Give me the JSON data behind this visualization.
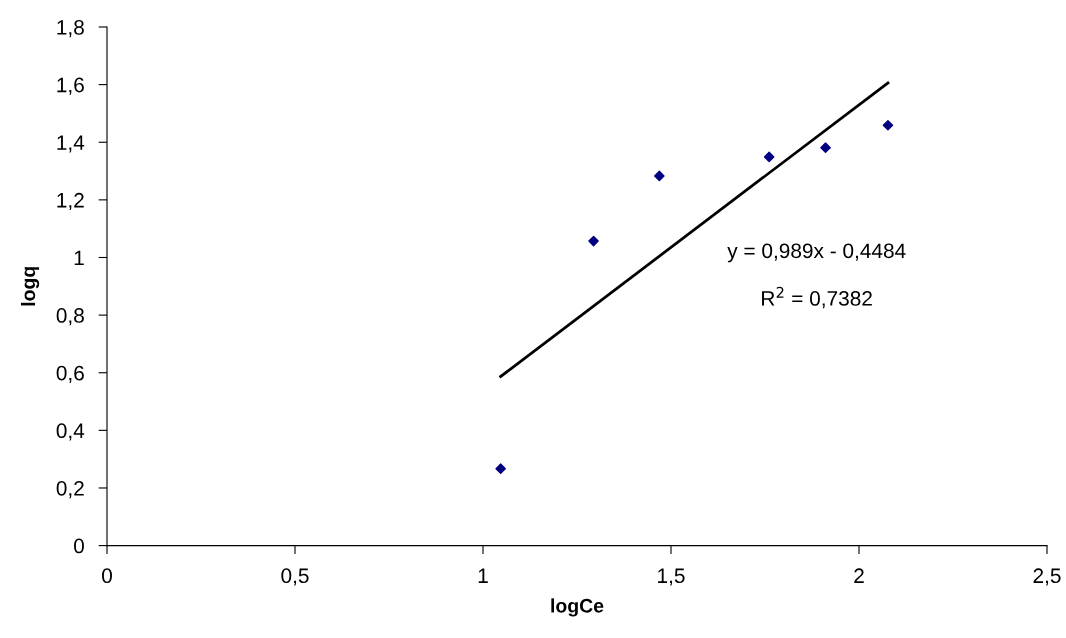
{
  "chart_data": {
    "type": "scatter",
    "xlabel": "logCe",
    "ylabel": "logq",
    "series": [
      {
        "color": "#000080",
        "marker": "diamond",
        "x": [
          1.047,
          1.294,
          1.469,
          1.761,
          1.911,
          2.077
        ],
        "values": [
          0.267,
          1.057,
          1.283,
          1.349,
          1.381,
          1.459
        ]
      },
      {
        "type": "line",
        "color": "#000000",
        "marker": "none",
        "line_style": "solid",
        "x": [
          1.047,
          2.077
        ],
        "values": [
          0.587,
          1.606
        ]
      }
    ],
    "annotations": [
      "y = 0,989x - 0,4484",
      "R$^{2}$ = 0,7382"
    ],
    "xlim": [
      0,
      2.5
    ],
    "ylim": [
      0,
      1.8
    ],
    "xticks": [
      0,
      {
        "value": 0.5,
        "label": "0,5"
      },
      1,
      {
        "value": 1.5,
        "label": "1,5"
      },
      2,
      {
        "value": 2.5,
        "label": "2,5"
      }
    ],
    "yticks": [
      0,
      {
        "value": 0.2,
        "label": "0,2"
      },
      {
        "value": 0.4,
        "label": "0,4"
      },
      {
        "value": 0.6,
        "label": "0,6"
      },
      {
        "value": 0.8,
        "label": "0,8"
      },
      1,
      {
        "value": 1.2,
        "label": "1,2"
      },
      {
        "value": 1.4,
        "label": "1,4"
      },
      {
        "value": 1.6,
        "label": "1,6"
      },
      {
        "value": 1.8,
        "label": "1,8"
      }
    ],
    "grid": false
  }
}
